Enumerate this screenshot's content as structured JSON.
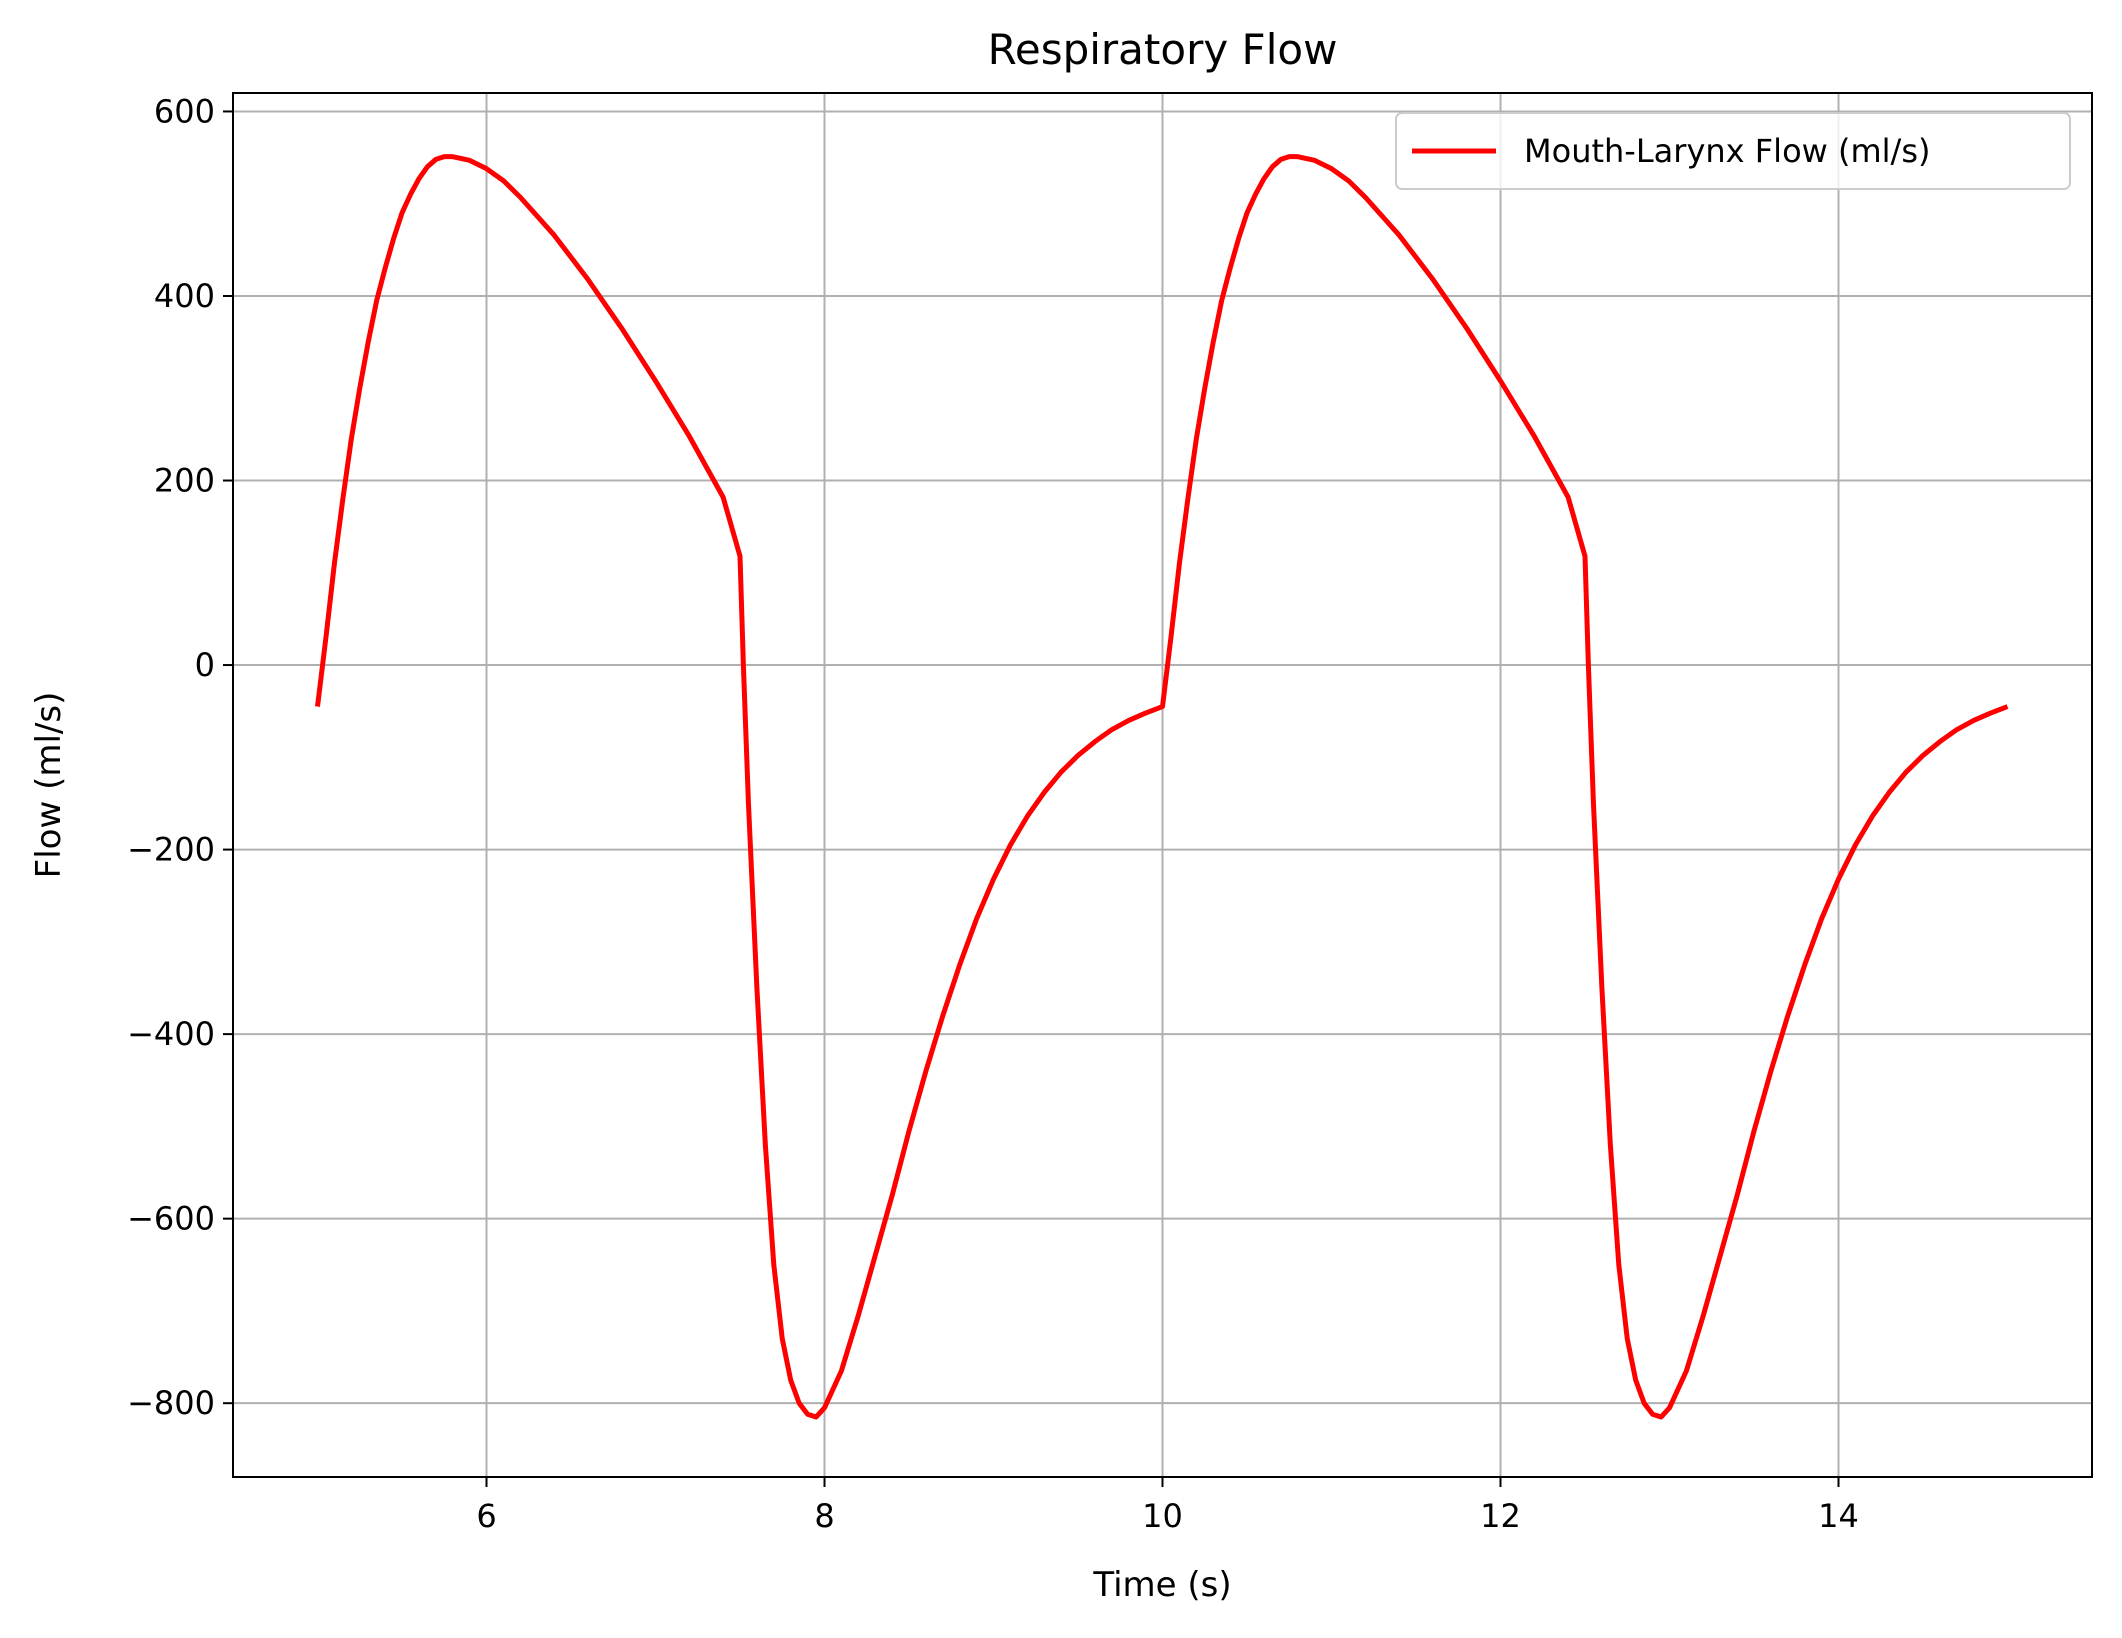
{
  "chart_data": {
    "type": "line",
    "title": "Respiratory Flow",
    "xlabel": "Time (s)",
    "ylabel": "Flow (ml/s)",
    "xlim": [
      4.5,
      15.5
    ],
    "ylim": [
      -880,
      620
    ],
    "xticks": [
      6,
      8,
      10,
      12,
      14
    ],
    "xtick_labels": [
      "6",
      "8",
      "10",
      "12",
      "14"
    ],
    "yticks": [
      600,
      400,
      200,
      0,
      -200,
      -400,
      -600,
      -800
    ],
    "ytick_labels": [
      "600",
      "400",
      "200",
      "0",
      "−200",
      "−400",
      "−600",
      "−800"
    ],
    "grid": true,
    "legend": {
      "position": "top-right",
      "entries": [
        "Mouth-Larynx Flow (ml/s)"
      ]
    },
    "series": [
      {
        "name": "Mouth-Larynx Flow (ml/s)",
        "color": "#ff0000",
        "points": [
          [
            5.0,
            -45
          ],
          [
            5.05,
            30
          ],
          [
            5.1,
            110
          ],
          [
            5.15,
            180
          ],
          [
            5.2,
            245
          ],
          [
            5.25,
            300
          ],
          [
            5.3,
            350
          ],
          [
            5.35,
            395
          ],
          [
            5.4,
            430
          ],
          [
            5.45,
            462
          ],
          [
            5.5,
            490
          ],
          [
            5.55,
            510
          ],
          [
            5.6,
            527
          ],
          [
            5.65,
            540
          ],
          [
            5.7,
            548
          ],
          [
            5.75,
            551
          ],
          [
            5.8,
            551
          ],
          [
            5.9,
            547
          ],
          [
            6.0,
            538
          ],
          [
            6.1,
            525
          ],
          [
            6.2,
            507
          ],
          [
            6.4,
            466
          ],
          [
            6.6,
            418
          ],
          [
            6.8,
            365
          ],
          [
            7.0,
            308
          ],
          [
            7.2,
            248
          ],
          [
            7.4,
            182
          ],
          [
            7.5,
            118
          ],
          [
            7.52,
            0
          ],
          [
            7.55,
            -150
          ],
          [
            7.6,
            -350
          ],
          [
            7.65,
            -520
          ],
          [
            7.7,
            -650
          ],
          [
            7.75,
            -730
          ],
          [
            7.8,
            -775
          ],
          [
            7.85,
            -800
          ],
          [
            7.9,
            -812
          ],
          [
            7.95,
            -815
          ],
          [
            8.0,
            -805
          ],
          [
            8.1,
            -765
          ],
          [
            8.2,
            -705
          ],
          [
            8.3,
            -640
          ],
          [
            8.4,
            -575
          ],
          [
            8.5,
            -505
          ],
          [
            8.6,
            -440
          ],
          [
            8.7,
            -380
          ],
          [
            8.8,
            -325
          ],
          [
            8.9,
            -275
          ],
          [
            9.0,
            -232
          ],
          [
            9.1,
            -195
          ],
          [
            9.2,
            -164
          ],
          [
            9.3,
            -138
          ],
          [
            9.4,
            -116
          ],
          [
            9.5,
            -98
          ],
          [
            9.6,
            -83
          ],
          [
            9.7,
            -70
          ],
          [
            9.8,
            -60
          ],
          [
            9.9,
            -52
          ],
          [
            10.0,
            -45
          ],
          [
            10.05,
            30
          ],
          [
            10.1,
            110
          ],
          [
            10.15,
            180
          ],
          [
            10.2,
            245
          ],
          [
            10.25,
            300
          ],
          [
            10.3,
            350
          ],
          [
            10.35,
            395
          ],
          [
            10.4,
            430
          ],
          [
            10.45,
            462
          ],
          [
            10.5,
            490
          ],
          [
            10.55,
            510
          ],
          [
            10.6,
            527
          ],
          [
            10.65,
            540
          ],
          [
            10.7,
            548
          ],
          [
            10.75,
            551
          ],
          [
            10.8,
            551
          ],
          [
            10.9,
            547
          ],
          [
            11.0,
            538
          ],
          [
            11.1,
            525
          ],
          [
            11.2,
            507
          ],
          [
            11.4,
            466
          ],
          [
            11.6,
            418
          ],
          [
            11.8,
            365
          ],
          [
            12.0,
            308
          ],
          [
            12.2,
            248
          ],
          [
            12.4,
            182
          ],
          [
            12.5,
            118
          ],
          [
            12.52,
            0
          ],
          [
            12.55,
            -150
          ],
          [
            12.6,
            -350
          ],
          [
            12.65,
            -520
          ],
          [
            12.7,
            -650
          ],
          [
            12.75,
            -730
          ],
          [
            12.8,
            -775
          ],
          [
            12.85,
            -800
          ],
          [
            12.9,
            -812
          ],
          [
            12.95,
            -815
          ],
          [
            13.0,
            -805
          ],
          [
            13.1,
            -765
          ],
          [
            13.2,
            -705
          ],
          [
            13.3,
            -640
          ],
          [
            13.4,
            -575
          ],
          [
            13.5,
            -505
          ],
          [
            13.6,
            -440
          ],
          [
            13.7,
            -380
          ],
          [
            13.8,
            -325
          ],
          [
            13.9,
            -275
          ],
          [
            14.0,
            -232
          ],
          [
            14.1,
            -195
          ],
          [
            14.2,
            -164
          ],
          [
            14.3,
            -138
          ],
          [
            14.4,
            -116
          ],
          [
            14.5,
            -98
          ],
          [
            14.6,
            -83
          ],
          [
            14.7,
            -70
          ],
          [
            14.8,
            -60
          ],
          [
            14.9,
            -52
          ],
          [
            15.0,
            -45
          ]
        ]
      }
    ]
  }
}
